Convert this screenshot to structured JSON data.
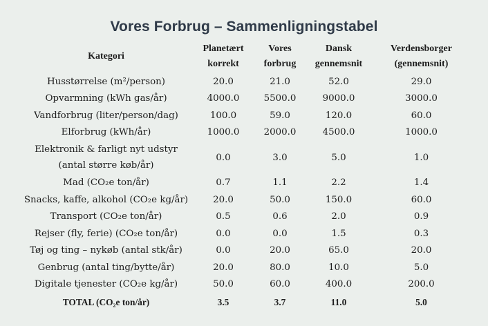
{
  "title": "Vores Forbrug – Sammenligningstabel",
  "columns": [
    "Kategori",
    "Planetært\nkorrekt",
    "Vores\nforbrug",
    "Dansk\ngennemsnit",
    "Verdensborger\n(gennemsnit)"
  ],
  "rows": [
    {
      "category": "Husstørrelse (m²/person)",
      "values": [
        "20.0",
        "21.0",
        "52.0",
        "29.0"
      ]
    },
    {
      "category": "Opvarmning (kWh gas/år)",
      "values": [
        "4000.0",
        "5500.0",
        "9000.0",
        "3000.0"
      ]
    },
    {
      "category": "Vandforbrug (liter/person/dag)",
      "values": [
        "100.0",
        "59.0",
        "120.0",
        "60.0"
      ]
    },
    {
      "category": "Elforbrug (kWh/år)",
      "values": [
        "1000.0",
        "2000.0",
        "4500.0",
        "1000.0"
      ]
    },
    {
      "category": "Elektronik & farligt nyt udstyr (antal større køb/år)",
      "values": [
        "0.0",
        "3.0",
        "5.0",
        "1.0"
      ]
    },
    {
      "category": "Mad (CO₂e ton/år)",
      "values": [
        "0.7",
        "1.1",
        "2.2",
        "1.4"
      ]
    },
    {
      "category": "Snacks, kaffe, alkohol (CO₂e kg/år)",
      "values": [
        "20.0",
        "50.0",
        "150.0",
        "60.0"
      ]
    },
    {
      "category": "Transport (CO₂e ton/år)",
      "values": [
        "0.5",
        "0.6",
        "2.0",
        "0.9"
      ]
    },
    {
      "category": "Rejser (fly, ferie) (CO₂e ton/år)",
      "values": [
        "0.0",
        "0.0",
        "1.5",
        "0.3"
      ]
    },
    {
      "category": "Tøj og ting – nykøb (antal stk/år)",
      "values": [
        "0.0",
        "20.0",
        "65.0",
        "20.0"
      ]
    },
    {
      "category": "Genbrug (antal ting/bytte/år)",
      "values": [
        "20.0",
        "80.0",
        "10.0",
        "5.0"
      ]
    },
    {
      "category": "Digitale tjenester (CO₂e kg/år)",
      "values": [
        "50.0",
        "60.0",
        "400.0",
        "200.0"
      ]
    }
  ],
  "total": {
    "category": "TOTAL (CO₂e ton/år)",
    "values": [
      "3.5",
      "3.7",
      "11.0",
      "5.0"
    ]
  },
  "colors": {
    "background": "#ebefec",
    "title": "#2f3a48",
    "text": "#1e1e1e"
  }
}
